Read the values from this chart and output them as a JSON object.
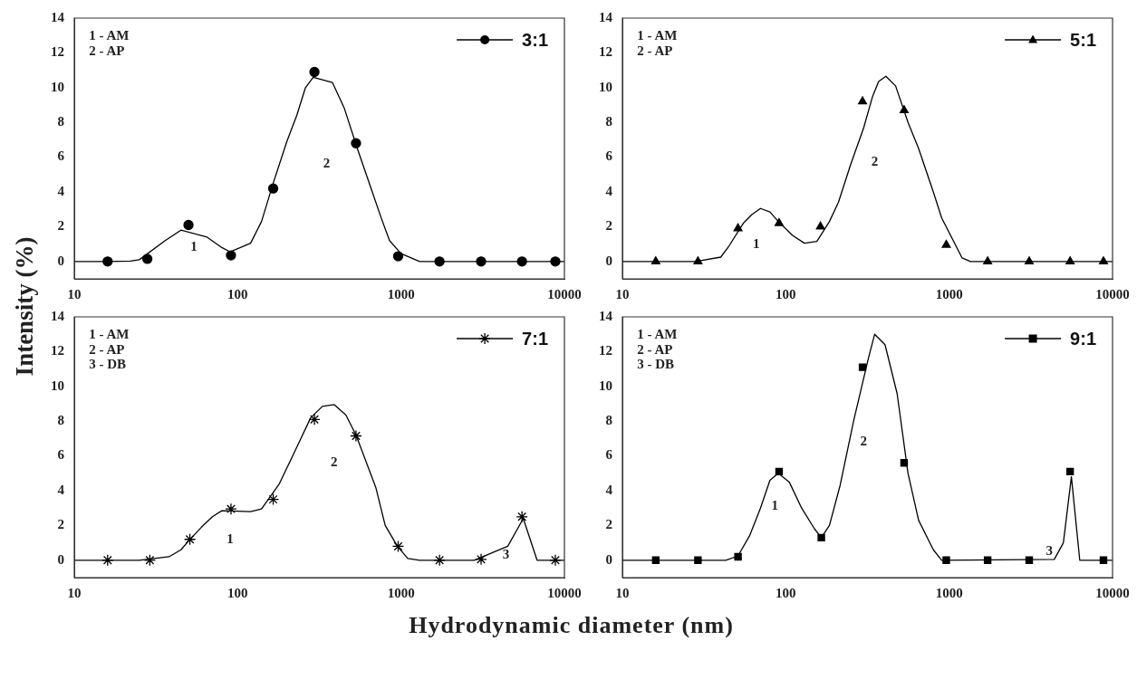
{
  "chart_data": [
    {
      "type": "line",
      "ylabel": "Intensity (%)",
      "xlim": [
        10,
        10000
      ],
      "xticks": [
        10,
        100,
        1000,
        10000
      ],
      "ylim": [
        -1,
        14
      ],
      "yticks": [
        0,
        2,
        4,
        6,
        8,
        10,
        12,
        14
      ],
      "log": "x",
      "grid": false,
      "legend": "top right",
      "annotations": [
        "1 - AM",
        "2 - AP",
        "1",
        "2"
      ],
      "series": [
        {
          "type": "line",
          "color": "#000000",
          "marker": "none",
          "x": [
            10,
            16,
            22,
            25,
            36,
            45,
            65,
            80,
            90,
            120,
            140,
            165,
            200,
            230,
            260,
            290,
            380,
            450,
            540,
            650,
            750,
            850,
            1000,
            1300,
            10000
          ],
          "values": [
            0,
            0,
            0.02,
            0.1,
            1.2,
            1.8,
            1.4,
            0.8,
            0.55,
            1.05,
            2.3,
            4.5,
            6.9,
            8.4,
            10,
            10.6,
            10.3,
            8.8,
            6.5,
            4.3,
            2.6,
            1.2,
            0.45,
            0,
            0
          ]
        },
        {
          "type": "scatter",
          "name": "3:1",
          "color": "#000000",
          "marker": "circle",
          "x": [
            16,
            28,
            50,
            91,
            165,
            295,
            530,
            960,
            1720,
            3090,
            5500,
            8800
          ],
          "values": [
            0,
            0.15,
            2.1,
            0.35,
            4.2,
            10.9,
            6.8,
            0.3,
            0,
            0,
            0,
            0
          ]
        }
      ]
    },
    {
      "type": "line",
      "xlim": [
        10,
        10000
      ],
      "xticks": [
        10,
        100,
        1000,
        10000
      ],
      "ylim": [
        -1,
        14
      ],
      "yticks": [
        0,
        2,
        4,
        6,
        8,
        10,
        12,
        14
      ],
      "log": "x",
      "grid": false,
      "legend": "top right",
      "annotations": [
        "1 - AM",
        "2 - AP",
        "1",
        "2"
      ],
      "series": [
        {
          "type": "line",
          "color": "#000000",
          "marker": "none",
          "x": [
            10,
            28,
            40,
            45,
            55,
            62,
            70,
            80,
            90,
            110,
            130,
            155,
            185,
            210,
            250,
            300,
            340,
            370,
            410,
            470,
            560,
            650,
            800,
            900,
            1100,
            1200,
            1350,
            10000
          ],
          "values": [
            0,
            0,
            0.25,
            0.9,
            2.2,
            2.7,
            3.05,
            2.85,
            2.3,
            1.5,
            1.05,
            1.15,
            2.3,
            3.4,
            5.6,
            7.7,
            9.5,
            10.35,
            10.65,
            10.1,
            8,
            6.5,
            4,
            2.5,
            0.9,
            0.2,
            0,
            0
          ]
        },
        {
          "type": "scatter",
          "name": "5:1",
          "color": "#000000",
          "marker": "triangle",
          "x": [
            16,
            29,
            51,
            91,
            163,
            295,
            530,
            960,
            1720,
            3090,
            5500,
            8800
          ],
          "values": [
            0,
            0,
            1.9,
            2.2,
            2,
            9.2,
            8.7,
            0.95,
            0,
            0,
            0,
            0
          ]
        }
      ]
    },
    {
      "type": "line",
      "xlabel": "Hydrodynamic diameter (nm)",
      "xlim": [
        10,
        10000
      ],
      "xticks": [
        10,
        100,
        1000,
        10000
      ],
      "ylim": [
        -1,
        14
      ],
      "yticks": [
        0,
        2,
        4,
        6,
        8,
        10,
        12,
        14
      ],
      "log": "x",
      "grid": false,
      "legend": "top right",
      "annotations": [
        "1 - AM",
        "2 - AP",
        "3 - DB",
        "1",
        "2",
        "3"
      ],
      "series": [
        {
          "type": "line",
          "color": "#000000",
          "marker": "none",
          "x": [
            10,
            25,
            38,
            45,
            50,
            60,
            70,
            80,
            120,
            140,
            180,
            230,
            280,
            330,
            390,
            460,
            530,
            700,
            800,
            950,
            1100,
            1300,
            2800,
            4500,
            5600,
            6800,
            10000
          ],
          "values": [
            0,
            0,
            0.2,
            0.6,
            1.1,
            1.9,
            2.5,
            2.85,
            2.8,
            2.95,
            4.4,
            6.5,
            8.2,
            8.85,
            8.95,
            8.35,
            7.2,
            4.2,
            2,
            0.8,
            0.1,
            0,
            0,
            0.8,
            2.4,
            0,
            0
          ]
        },
        {
          "type": "scatter",
          "name": "7:1",
          "color": "#000000",
          "marker": "cross",
          "x": [
            16,
            29,
            51,
            91,
            165,
            295,
            530,
            960,
            1720,
            3090,
            5500,
            8800
          ],
          "values": [
            0,
            0,
            1.2,
            2.95,
            3.5,
            8.1,
            7.15,
            0.8,
            0,
            0.05,
            2.5,
            0
          ]
        }
      ]
    },
    {
      "type": "line",
      "xlim": [
        10,
        10000
      ],
      "xticks": [
        10,
        100,
        1000,
        10000
      ],
      "ylim": [
        -1,
        14
      ],
      "yticks": [
        0,
        2,
        4,
        6,
        8,
        10,
        12,
        14
      ],
      "log": "x",
      "grid": false,
      "legend": "top right",
      "annotations": [
        "1 - AM",
        "2 - AP",
        "3 - DB",
        "1",
        "2",
        "3"
      ],
      "series": [
        {
          "type": "line",
          "color": "#000000",
          "marker": "none",
          "x": [
            10,
            43,
            51,
            60,
            70,
            80,
            90,
            105,
            125,
            150,
            165,
            185,
            215,
            260,
            320,
            350,
            405,
            480,
            560,
            650,
            800,
            900,
            4400,
            5000,
            5600,
            6300,
            10000
          ],
          "values": [
            0,
            0,
            0.25,
            1.4,
            3,
            4.6,
            5,
            4.5,
            3,
            1.8,
            1.3,
            2,
            4.3,
            8,
            11.6,
            13,
            12.4,
            9.6,
            5,
            2.3,
            0.6,
            0,
            0.05,
            1,
            4.8,
            0,
            0
          ]
        },
        {
          "type": "scatter",
          "name": "9:1",
          "color": "#000000",
          "marker": "square",
          "x": [
            16,
            29,
            51,
            91,
            165,
            295,
            530,
            960,
            1720,
            3090,
            5500,
            8800
          ],
          "values": [
            0,
            0,
            0.2,
            5.1,
            1.3,
            11.1,
            5.6,
            0,
            0,
            0,
            5.1,
            0
          ]
        }
      ]
    }
  ]
}
